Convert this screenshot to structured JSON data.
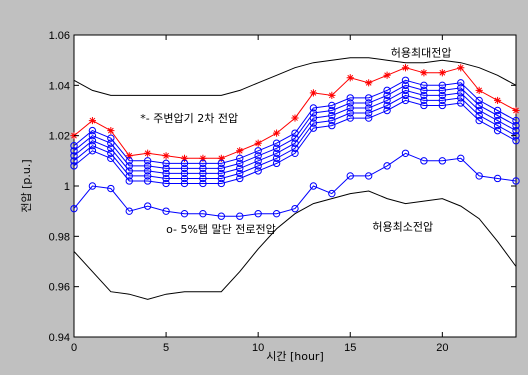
{
  "chart_data": {
    "type": "line",
    "title": "",
    "xlabel": "시간 [hour]",
    "ylabel": "전압 [p.u.]",
    "xlim": [
      0,
      24
    ],
    "ylim": [
      0.94,
      1.06
    ],
    "x_ticks": [
      "0",
      "5",
      "10",
      "15",
      "20"
    ],
    "y_ticks": [
      "0.94",
      "0.96",
      "0.98",
      "1",
      "1.02",
      "1.04",
      "1.06"
    ],
    "grid": false,
    "x": [
      0,
      1,
      2,
      3,
      4,
      5,
      6,
      7,
      8,
      9,
      10,
      11,
      12,
      13,
      14,
      15,
      16,
      17,
      18,
      19,
      20,
      21,
      22,
      23,
      24
    ],
    "series": [
      {
        "name": "허용최대전압",
        "color": "#000000",
        "marker": "none",
        "values": [
          1.042,
          1.038,
          1.036,
          1.036,
          1.036,
          1.036,
          1.036,
          1.036,
          1.036,
          1.038,
          1.041,
          1.044,
          1.047,
          1.049,
          1.05,
          1.051,
          1.051,
          1.05,
          1.049,
          1.049,
          1.05,
          1.049,
          1.047,
          1.044,
          1.04
        ]
      },
      {
        "name": "허용최소전압",
        "color": "#000000",
        "marker": "none",
        "values": [
          0.974,
          0.966,
          0.958,
          0.957,
          0.955,
          0.957,
          0.958,
          0.958,
          0.958,
          0.966,
          0.975,
          0.983,
          0.989,
          0.993,
          0.995,
          0.997,
          0.998,
          0.995,
          0.993,
          0.994,
          0.995,
          0.992,
          0.987,
          0.978,
          0.968
        ]
      },
      {
        "name": "주변압기 2차 전압",
        "color": "#ff0000",
        "marker": "*",
        "values": [
          1.02,
          1.026,
          1.022,
          1.012,
          1.013,
          1.012,
          1.011,
          1.011,
          1.011,
          1.014,
          1.017,
          1.021,
          1.027,
          1.037,
          1.036,
          1.043,
          1.041,
          1.044,
          1.047,
          1.045,
          1.045,
          1.047,
          1.038,
          1.034,
          1.03
        ]
      },
      {
        "name": "",
        "color": "#0000ff",
        "marker": "o",
        "values": [
          1.016,
          1.022,
          1.019,
          1.01,
          1.01,
          1.009,
          1.009,
          1.009,
          1.009,
          1.011,
          1.014,
          1.017,
          1.021,
          1.031,
          1.032,
          1.035,
          1.035,
          1.038,
          1.042,
          1.04,
          1.04,
          1.041,
          1.034,
          1.03,
          1.026
        ]
      },
      {
        "name": "",
        "color": "#0000ff",
        "marker": "o",
        "values": [
          1.014,
          1.02,
          1.017,
          1.008,
          1.008,
          1.007,
          1.007,
          1.007,
          1.007,
          1.009,
          1.012,
          1.015,
          1.019,
          1.029,
          1.03,
          1.033,
          1.033,
          1.036,
          1.04,
          1.038,
          1.038,
          1.039,
          1.032,
          1.028,
          1.024
        ]
      },
      {
        "name": "",
        "color": "#0000ff",
        "marker": "o",
        "values": [
          1.012,
          1.018,
          1.015,
          1.006,
          1.006,
          1.005,
          1.005,
          1.005,
          1.005,
          1.007,
          1.01,
          1.013,
          1.017,
          1.027,
          1.028,
          1.031,
          1.031,
          1.034,
          1.038,
          1.036,
          1.036,
          1.037,
          1.03,
          1.026,
          1.022
        ]
      },
      {
        "name": "",
        "color": "#0000ff",
        "marker": "o",
        "values": [
          1.01,
          1.016,
          1.013,
          1.004,
          1.004,
          1.003,
          1.003,
          1.003,
          1.003,
          1.005,
          1.008,
          1.011,
          1.015,
          1.025,
          1.026,
          1.029,
          1.029,
          1.032,
          1.036,
          1.034,
          1.034,
          1.035,
          1.028,
          1.024,
          1.02
        ]
      },
      {
        "name": "",
        "color": "#0000ff",
        "marker": "o",
        "values": [
          1.008,
          1.014,
          1.011,
          1.002,
          1.002,
          1.001,
          1.001,
          1.001,
          1.001,
          1.003,
          1.006,
          1.009,
          1.013,
          1.023,
          1.024,
          1.027,
          1.027,
          1.03,
          1.034,
          1.032,
          1.032,
          1.033,
          1.026,
          1.022,
          1.018
        ]
      },
      {
        "name": "5%탭 말단 전로전압",
        "color": "#0000ff",
        "marker": "o",
        "values": [
          0.991,
          1.0,
          0.999,
          0.99,
          0.992,
          0.99,
          0.989,
          0.989,
          0.988,
          0.988,
          0.989,
          0.989,
          0.991,
          1.0,
          0.997,
          1.004,
          1.004,
          1.008,
          1.013,
          1.01,
          1.01,
          1.011,
          1.004,
          1.003,
          1.002
        ]
      }
    ],
    "annotations": [
      {
        "text": "허용최대전압",
        "x": 17.2,
        "y": 1.053
      },
      {
        "text": "*- 주변압기 2차 전압",
        "x": 3.6,
        "y": 1.027
      },
      {
        "text": "허용최소전압",
        "x": 16.2,
        "y": 0.984
      },
      {
        "text": "o- 5%탭 말단 전로전압",
        "x": 5.0,
        "y": 0.983
      }
    ]
  }
}
